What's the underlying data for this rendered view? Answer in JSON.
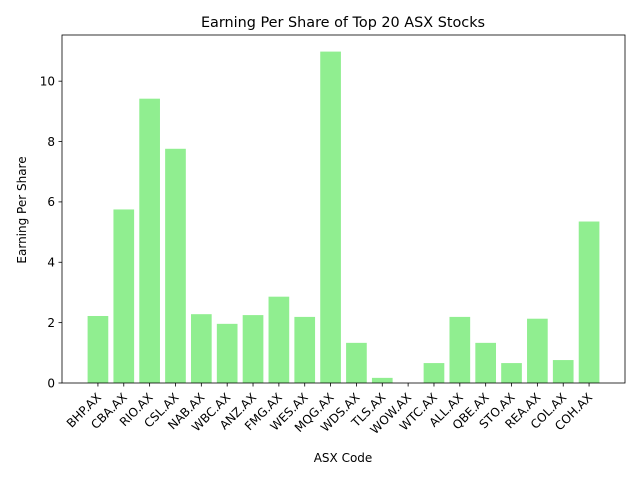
{
  "chart_data": {
    "type": "bar",
    "title": "Earning Per Share of Top 20 ASX Stocks",
    "xlabel": "ASX Code",
    "ylabel": "Earning Per Share",
    "categories": [
      "BHP.AX",
      "CBA.AX",
      "RIO.AX",
      "CSL.AX",
      "NAB.AX",
      "WBC.AX",
      "ANZ.AX",
      "FMG.AX",
      "WES.AX",
      "MQG.AX",
      "WDS.AX",
      "TLS.AX",
      "WOW.AX",
      "WTC.AX",
      "ALL.AX",
      "QBE.AX",
      "STO.AX",
      "REA.AX",
      "COL.AX",
      "COH.AX"
    ],
    "values": [
      2.22,
      5.75,
      9.42,
      7.76,
      2.28,
      1.96,
      2.25,
      2.86,
      2.19,
      10.98,
      1.33,
      0.17,
      0.0,
      0.66,
      2.19,
      1.33,
      0.66,
      2.13,
      0.76,
      5.35
    ],
    "ylim": [
      0,
      11.53
    ],
    "yticks": [
      "0",
      "2",
      "4",
      "6",
      "8",
      "10"
    ],
    "grid": false,
    "bar_color": "#90ee90"
  }
}
